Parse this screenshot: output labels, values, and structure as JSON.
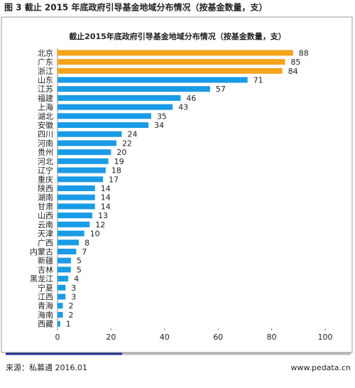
{
  "header": "图 3 截止 2015 年底政府引导基金地域分布情况（按基金数量，支）",
  "chart_data": {
    "type": "hbar",
    "title": "截止2015年底政府引导基金地域分布情况（按基金数量，支）",
    "categories": [
      "北京",
      "广东",
      "浙江",
      "山东",
      "江苏",
      "福建",
      "上海",
      "湖北",
      "安徽",
      "四川",
      "河南",
      "贵州",
      "河北",
      "辽宁",
      "重庆",
      "陕西",
      "湖南",
      "甘肃",
      "山西",
      "云南",
      "天津",
      "广西",
      "内蒙古",
      "新疆",
      "吉林",
      "黑龙江",
      "宁夏",
      "江西",
      "青海",
      "海南",
      "西藏"
    ],
    "values": [
      88,
      85,
      84,
      71,
      57,
      46,
      43,
      35,
      34,
      24,
      22,
      20,
      19,
      18,
      17,
      14,
      14,
      14,
      13,
      12,
      10,
      8,
      7,
      5,
      5,
      4,
      3,
      3,
      2,
      2,
      1
    ],
    "colors": [
      "#f5a41c",
      "#f5a41c",
      "#f5a41c",
      "#1a9be6",
      "#1a9be6",
      "#1a9be6",
      "#1a9be6",
      "#1a9be6",
      "#1a9be6",
      "#1a9be6",
      "#1a9be6",
      "#1a9be6",
      "#1a9be6",
      "#1a9be6",
      "#1a9be6",
      "#1a9be6",
      "#1a9be6",
      "#1a9be6",
      "#1a9be6",
      "#1a9be6",
      "#1a9be6",
      "#1a9be6",
      "#1a9be6",
      "#1a9be6",
      "#1a9be6",
      "#1a9be6",
      "#1a9be6",
      "#1a9be6",
      "#1a9be6",
      "#1a9be6",
      "#1a9be6"
    ],
    "xlim": [
      0,
      100
    ],
    "xticks": [
      0,
      20,
      40,
      60,
      80,
      100
    ]
  },
  "footer": {
    "source": "来源：私募通 2016.01",
    "site": "www.pedata.cn"
  }
}
